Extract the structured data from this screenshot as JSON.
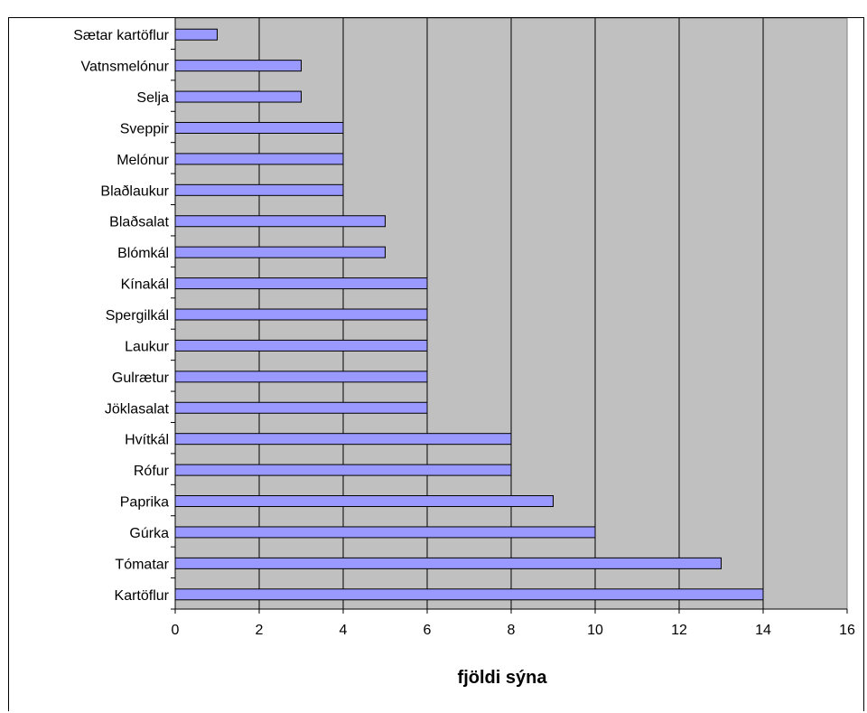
{
  "chart_data": {
    "type": "bar",
    "orientation": "horizontal",
    "categories": [
      "Sætar kartöflur",
      "Vatnsmelónur",
      "Selja",
      "Sveppir",
      "Melónur",
      "Blaðlaukur",
      "Blaðsalat",
      "Blómkál",
      "Kínakál",
      "Spergilkál",
      "Laukur",
      "Gulrætur",
      "Jöklasalat",
      "Hvítkál",
      "Rófur",
      "Paprika",
      "Gúrka",
      "Tómatar",
      "Kartöflur"
    ],
    "values": [
      1,
      3,
      3,
      4,
      4,
      4,
      5,
      5,
      6,
      6,
      6,
      6,
      6,
      8,
      8,
      9,
      10,
      13,
      14
    ],
    "xlabel": "fjöldi sýna",
    "ylabel": "",
    "xlim": [
      0,
      16
    ],
    "xticks": [
      "0",
      "2",
      "4",
      "6",
      "8",
      "10",
      "12",
      "14",
      "16"
    ],
    "grid": "vertical",
    "legend": "none",
    "colors": {
      "bar": "#9999ff",
      "bar_border": "#000000",
      "plot_bg": "#c0c0c0",
      "grid": "#000000"
    }
  }
}
